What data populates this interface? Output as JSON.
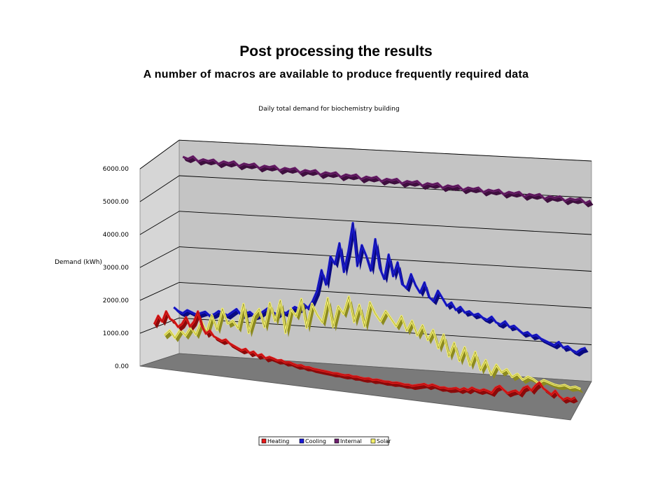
{
  "slide": {
    "title": "Post processing the results",
    "subtitle": "A number of macros are available to produce frequently required data"
  },
  "chart_data": {
    "type": "area",
    "title": "Daily total demand for biochemistry building",
    "ylabel": "Demand (kWh)",
    "xlabel": "",
    "ylim": [
      0,
      6000
    ],
    "yticks": [
      "0.00",
      "1000.00",
      "2000.00",
      "3000.00",
      "4000.00",
      "5000.00",
      "6000.00"
    ],
    "grid": true,
    "legend_position": "bottom",
    "projection": "3d-ribbon",
    "colors": {
      "Heating": "#e81a1a",
      "Cooling": "#1a1ad8",
      "Internal": "#6e1f6e",
      "Solar": "#f4f06a",
      "wall": "#c4c4c4",
      "floor": "#7a7a7a"
    },
    "series": [
      {
        "name": "Heating",
        "values": [
          1100,
          1350,
          1200,
          1500,
          1300,
          1250,
          1100,
          1200,
          1400,
          1150,
          1300,
          1600,
          1200,
          1000,
          1100,
          950,
          900,
          850,
          900,
          800,
          750,
          700,
          650,
          700,
          600,
          650,
          550,
          600,
          500,
          550,
          520,
          480,
          500,
          450,
          470,
          430,
          400,
          420,
          380,
          390,
          360,
          350,
          340,
          330,
          320,
          300,
          310,
          290,
          280,
          300,
          270,
          280,
          260,
          250,
          270,
          240,
          260,
          250,
          230,
          240,
          220,
          240,
          230,
          210,
          220,
          200,
          230,
          260,
          290,
          250,
          300,
          270,
          240,
          260,
          230,
          250,
          280,
          240,
          300,
          260,
          340,
          300,
          280,
          330,
          300,
          260,
          420,
          480,
          380,
          300,
          360,
          400,
          330,
          500,
          560,
          450,
          600,
          700,
          550,
          480,
          400,
          520,
          380,
          300,
          360,
          330,
          400
        ]
      },
      {
        "name": "Cooling",
        "values": [
          1400,
          1300,
          1250,
          1350,
          1300,
          1250,
          1300,
          1350,
          1250,
          1300,
          1400,
          1350,
          1300,
          1400,
          1500,
          1350,
          1400,
          1450,
          1350,
          1400,
          1500,
          1600,
          1500,
          1450,
          1550,
          1500,
          1600,
          1700,
          1650,
          1800,
          1700,
          1900,
          2200,
          2800,
          2400,
          3200,
          3000,
          3600,
          2800,
          3400,
          4200,
          3000,
          3600,
          3300,
          2900,
          3800,
          3000,
          2700,
          3400,
          2800,
          3200,
          2600,
          2500,
          2900,
          2600,
          2400,
          2700,
          2300,
          2200,
          2500,
          2300,
          2100,
          2200,
          2000,
          2100,
          1950,
          2000,
          1900,
          1950,
          1850,
          1800,
          1900,
          1750,
          1700,
          1800,
          1650,
          1700,
          1600,
          1500,
          1550,
          1450,
          1500,
          1400,
          1350,
          1300,
          1250,
          1350,
          1200,
          1250,
          1150,
          1100,
          1200,
          1250
        ]
      },
      {
        "name": "Internal",
        "values": [
          5550,
          5500,
          5580,
          5450,
          5520,
          5480,
          5530,
          5420,
          5500,
          5460,
          5520,
          5400,
          5480,
          5450,
          5500,
          5380,
          5460,
          5430,
          5480,
          5360,
          5440,
          5410,
          5460,
          5340,
          5420,
          5390,
          5440,
          5320,
          5400,
          5370,
          5420,
          5300,
          5380,
          5350,
          5400,
          5280,
          5360,
          5330,
          5380,
          5260,
          5340,
          5310,
          5360,
          5240,
          5320,
          5290,
          5340,
          5220,
          5300,
          5270,
          5320,
          5200,
          5280,
          5250,
          5300,
          5180,
          5260,
          5230,
          5280,
          5160,
          5240,
          5210,
          5260,
          5140,
          5220,
          5190,
          5240,
          5120,
          5200,
          5170,
          5220,
          5100,
          5180,
          5150,
          5200,
          5080,
          5160,
          5130,
          5180,
          5060,
          5140
        ]
      },
      {
        "name": "Solar",
        "values": [
          700,
          850,
          650,
          900,
          750,
          1000,
          800,
          1200,
          900,
          1400,
          1000,
          1600,
          1200,
          1300,
          1100,
          1800,
          1000,
          1500,
          1700,
          1200,
          1900,
          1400,
          2000,
          1100,
          1800,
          1600,
          2100,
          1300,
          2000,
          1700,
          1500,
          2200,
          1400,
          2000,
          1800,
          2300,
          1600,
          2100,
          1500,
          2200,
          1900,
          1700,
          2000,
          1800,
          1600,
          1900,
          1500,
          1800,
          1400,
          1700,
          1300,
          1600,
          1100,
          1500,
          900,
          1300,
          800,
          1200,
          700,
          1100,
          600,
          900,
          500,
          800,
          600,
          700,
          500,
          600,
          450,
          550,
          500,
          400,
          500,
          450,
          400,
          380,
          420,
          360,
          400,
          350
        ]
      }
    ]
  }
}
